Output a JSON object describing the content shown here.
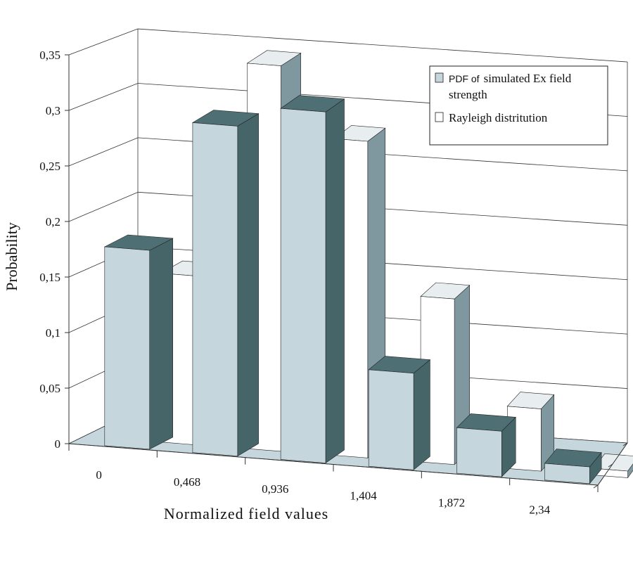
{
  "chart_data": {
    "type": "bar",
    "title": "",
    "xlabel": "Normalized field values",
    "ylabel": "Probability",
    "ylim": [
      0,
      0.35
    ],
    "yticks": [
      "0",
      "0,05",
      "0,1",
      "0,15",
      "0,2",
      "0,25",
      "0,3",
      "0,35"
    ],
    "categories": [
      "0",
      "0,468",
      "0,936",
      "1,404",
      "1,872",
      "2,34"
    ],
    "series": [
      {
        "name": "PDF of simulated Ex field strength",
        "values": [
          0.179,
          0.297,
          0.316,
          0.087,
          0.041,
          0.015
        ]
      },
      {
        "name": "Rayleigh distritution",
        "values": [
          0.152,
          0.347,
          0.285,
          0.149,
          0.056,
          0.006
        ]
      }
    ],
    "legend": {
      "position": "top-right",
      "entries": [
        {
          "label_part1": "PDF of",
          "label_part2": "simulated Ex field",
          "label_part3": "strength"
        },
        {
          "label_part1": "Rayleigh distritution"
        }
      ]
    },
    "colors": {
      "series1_front": "#c5d6dd",
      "series1_side": "#456569",
      "series1_top": "#4e7074",
      "series2_front": "#ffffff",
      "series2_side": "#7f989f",
      "series2_top": "#e8eef0",
      "floor": "#c5d6dd",
      "grid": "#333333"
    }
  }
}
